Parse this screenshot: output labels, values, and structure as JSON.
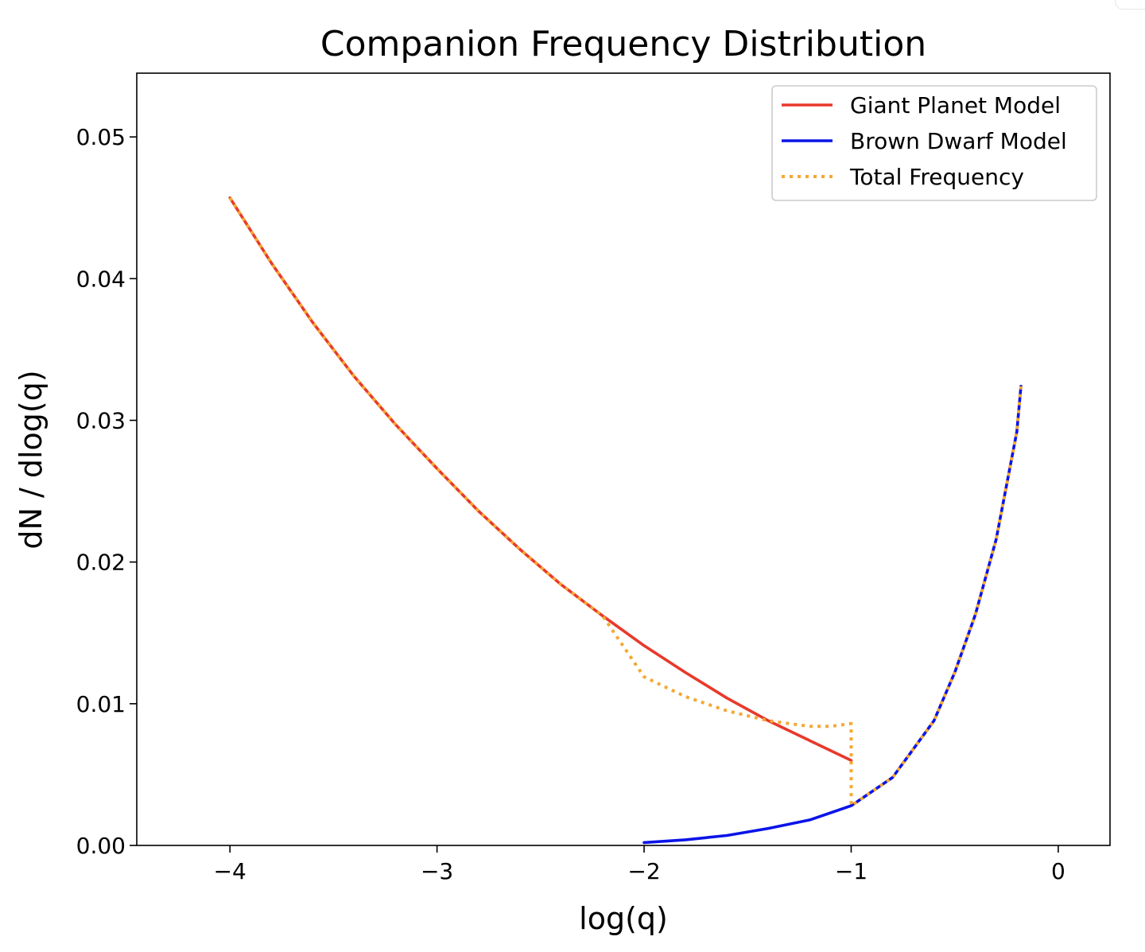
{
  "chart_data": {
    "type": "line",
    "title": "Companion Frequency Distribution",
    "xlabel": "log(q)",
    "ylabel": "dN / dlog(q)",
    "xlim": [
      -4.45,
      0.25
    ],
    "ylim": [
      0,
      0.0545
    ],
    "x_ticks": [
      -4,
      -3,
      -2,
      -1,
      0
    ],
    "x_tick_labels": [
      "−4",
      "−3",
      "−2",
      "−1",
      "0"
    ],
    "y_ticks": [
      0.0,
      0.01,
      0.02,
      0.03,
      0.04,
      0.05
    ],
    "y_tick_labels": [
      "0.00",
      "0.01",
      "0.02",
      "0.03",
      "0.04",
      "0.05"
    ],
    "grid": false,
    "legend_position": "top-right",
    "series": [
      {
        "name": "Giant Planet Model",
        "color": "#e8392b",
        "style": "solid",
        "x": [
          -4.0,
          -3.8,
          -3.6,
          -3.4,
          -3.2,
          -3.0,
          -2.8,
          -2.6,
          -2.4,
          -2.2,
          -2.0,
          -1.8,
          -1.6,
          -1.4,
          -1.2,
          -1.0
        ],
        "y": [
          0.0457,
          0.0411,
          0.0369,
          0.0331,
          0.0297,
          0.0266,
          0.0236,
          0.0209,
          0.0184,
          0.0162,
          0.0141,
          0.0122,
          0.0104,
          0.0088,
          0.0074,
          0.006
        ]
      },
      {
        "name": "Brown Dwarf Model",
        "color": "#0a14e8",
        "style": "solid",
        "x": [
          -2.0,
          -1.8,
          -1.6,
          -1.4,
          -1.2,
          -1.0,
          -0.8,
          -0.6,
          -0.5,
          -0.4,
          -0.3,
          -0.2,
          -0.18
        ],
        "y": [
          0.0002,
          0.0004,
          0.0007,
          0.0012,
          0.0018,
          0.0028,
          0.0048,
          0.0088,
          0.0122,
          0.0163,
          0.0216,
          0.0292,
          0.0324
        ]
      },
      {
        "name": "Total Frequency",
        "color": "#f5a833",
        "style": "dotted",
        "x": [
          -4.0,
          -3.8,
          -3.6,
          -3.4,
          -3.2,
          -3.0,
          -2.8,
          -2.6,
          -2.4,
          -2.2,
          -2.0,
          -1.8,
          -1.6,
          -1.4,
          -1.2,
          -1.1,
          -1.0,
          -1.0,
          -0.8,
          -0.6,
          -0.5,
          -0.4,
          -0.3,
          -0.2,
          -0.18
        ],
        "y": [
          0.0457,
          0.0411,
          0.0369,
          0.0331,
          0.0297,
          0.0266,
          0.0236,
          0.0209,
          0.0184,
          0.0162,
          0.0119,
          0.0105,
          0.0095,
          0.0088,
          0.0084,
          0.0084,
          0.0086,
          0.0028,
          0.0048,
          0.0088,
          0.0122,
          0.0163,
          0.0216,
          0.0292,
          0.0324
        ]
      }
    ]
  }
}
